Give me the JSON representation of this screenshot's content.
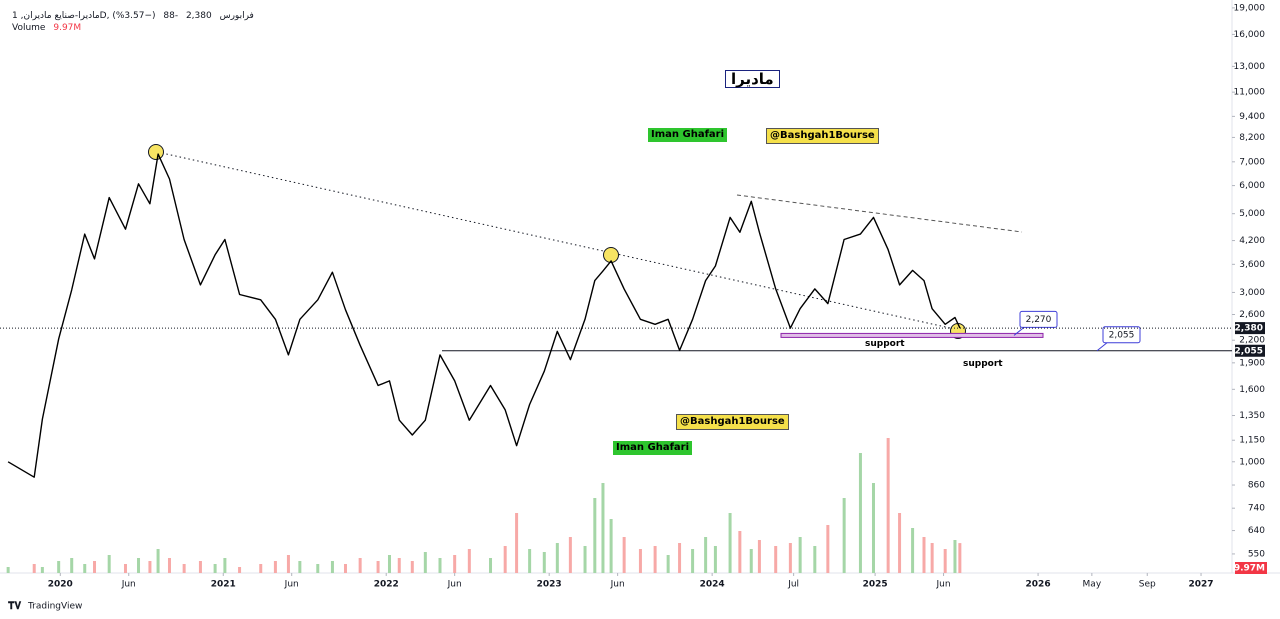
{
  "header": {
    "symbol": "ماديرا-صنايع ماديران, 1D, فرابورس",
    "last": {
      "value": 2380,
      "label": "2,380"
    },
    "change": -88,
    "change_pct": {
      "value": -3.57,
      "label": "(−3.57%)"
    },
    "volume_label": "Volume",
    "volume_value": {
      "value": 9.97,
      "label": "9.97M"
    }
  },
  "footer": "TradingView",
  "chart_data": {
    "type": "line",
    "title": "ماديرا",
    "log_scale": true,
    "color": "#000000",
    "annotations": [
      "Iman Ghafari",
      "@Bashgah1Bourse",
      "@Bashgah1Bourse",
      "Iman Ghafari",
      "support",
      "support"
    ],
    "x": [
      2019.68,
      2019.84,
      2019.89,
      2019.99,
      2020.07,
      2020.15,
      2020.21,
      2020.3,
      2020.4,
      2020.48,
      2020.55,
      2020.6,
      2020.67,
      2020.76,
      2020.86,
      2020.95,
      2021.01,
      2021.1,
      2021.23,
      2021.32,
      2021.4,
      2021.47,
      2021.58,
      2021.67,
      2021.75,
      2021.84,
      2021.95,
      2022.02,
      2022.08,
      2022.16,
      2022.24,
      2022.33,
      2022.42,
      2022.51,
      2022.64,
      2022.73,
      2022.8,
      2022.88,
      2022.97,
      2023.05,
      2023.13,
      2023.22,
      2023.28,
      2023.33,
      2023.38,
      2023.46,
      2023.56,
      2023.65,
      2023.73,
      2023.8,
      2023.88,
      2023.96,
      2024.02,
      2024.11,
      2024.17,
      2024.24,
      2024.29,
      2024.39,
      2024.48,
      2024.54,
      2024.63,
      2024.71,
      2024.81,
      2024.91,
      2024.99,
      2025.08,
      2025.15,
      2025.23,
      2025.3,
      2025.35,
      2025.43,
      2025.49,
      2025.52
    ],
    "values": [
      1000,
      905,
      1320,
      2220,
      3050,
      4380,
      3730,
      5550,
      4520,
      6070,
      5330,
      7360,
      6260,
      4230,
      3150,
      3830,
      4230,
      2960,
      2860,
      2520,
      2000,
      2520,
      2860,
      3420,
      2680,
      2130,
      1640,
      1690,
      1310,
      1190,
      1310,
      2000,
      1690,
      1310,
      1640,
      1400,
      1110,
      1450,
      1800,
      2330,
      1940,
      2520,
      3240,
      3450,
      3680,
      3070,
      2520,
      2440,
      2520,
      2060,
      2520,
      3240,
      3560,
      4880,
      4430,
      5420,
      4430,
      3070,
      2380,
      2700,
      3070,
      2790,
      4230,
      4380,
      4880,
      3960,
      3150,
      3460,
      3240,
      2700,
      2440,
      2550,
      2380
    ],
    "volume": [
      2,
      3,
      2,
      4,
      5,
      3,
      4,
      6,
      3,
      5,
      4,
      8,
      5,
      3,
      4,
      3,
      5,
      2,
      3,
      4,
      6,
      4,
      3,
      4,
      3,
      5,
      4,
      6,
      5,
      4,
      7,
      5,
      6,
      8,
      5,
      9,
      20,
      8,
      7,
      10,
      12,
      9,
      25,
      30,
      18,
      12,
      8,
      9,
      6,
      10,
      8,
      12,
      9,
      20,
      14,
      8,
      11,
      9,
      10,
      12,
      9,
      16,
      25,
      40,
      30,
      45,
      20,
      15,
      12,
      10,
      8,
      11,
      9.97
    ],
    "volume_colors": [
      "#f7a9a7",
      "#a5d6a7"
    ],
    "levels": [
      {
        "value": 2270,
        "label": "2,270"
      },
      {
        "value": 2055,
        "label": "2,055"
      }
    ],
    "xlim": [
      2019.63,
      2027.19
    ],
    "xticks": [
      2020,
      {
        "value": 2020.42,
        "label": "Jun"
      },
      2021,
      {
        "value": 2021.42,
        "label": "Jun"
      },
      2022,
      {
        "value": 2022.42,
        "label": "Jun"
      },
      2023,
      {
        "value": 2023.42,
        "label": "Jun"
      },
      2024,
      {
        "value": 2024.5,
        "label": "Jul"
      },
      2025,
      {
        "value": 2025.42,
        "label": "Jun"
      },
      2026,
      {
        "value": 2026.33,
        "label": "May"
      },
      {
        "value": 2026.67,
        "label": "Sep"
      },
      2027
    ],
    "ylim": [
      486,
      20000
    ],
    "yticks": [
      {
        "value": 19000,
        "label": "19,000"
      },
      {
        "value": 16000,
        "label": "16,000"
      },
      {
        "value": 13000,
        "label": "13,000"
      },
      {
        "value": 11000,
        "label": "11,000"
      },
      {
        "value": 9400,
        "label": "9,400"
      },
      {
        "value": 8200,
        "label": "8,200"
      },
      {
        "value": 7000,
        "label": "7,000"
      },
      {
        "value": 6000,
        "label": "6,000"
      },
      {
        "value": 5000,
        "label": "5,000"
      },
      {
        "value": 4200,
        "label": "4,200"
      },
      {
        "value": 3600,
        "label": "3,600"
      },
      {
        "value": 3000,
        "label": "3,000"
      },
      {
        "value": 2600,
        "label": "2,600"
      },
      {
        "value": 2200,
        "label": "2,200"
      },
      {
        "value": 1900,
        "label": "1,900"
      },
      {
        "value": 1600,
        "label": "1,600"
      },
      {
        "value": 1350,
        "label": "1,350"
      },
      {
        "value": 1150,
        "label": "1,150"
      },
      {
        "value": 1000,
        "label": "1,000"
      },
      860,
      740,
      640,
      550
    ]
  }
}
